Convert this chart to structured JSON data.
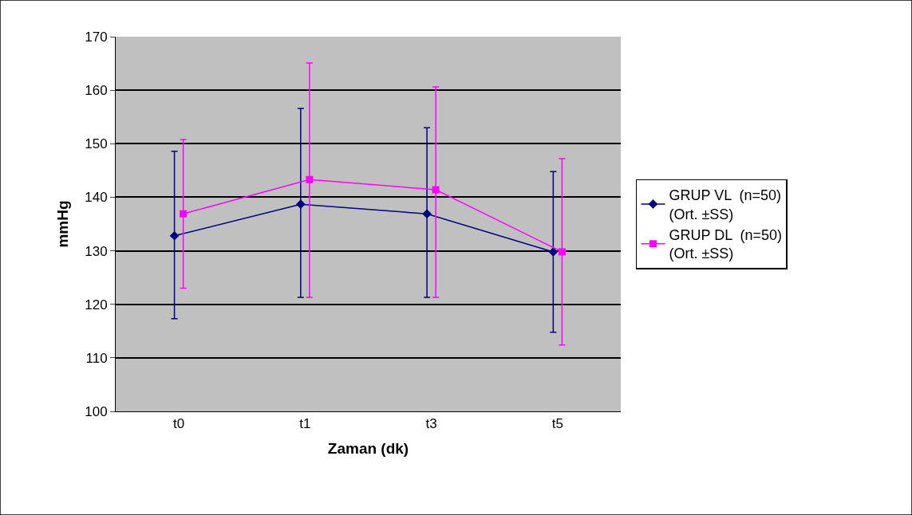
{
  "chart_data": {
    "type": "line",
    "xlabel": "Zaman (dk)",
    "ylabel": "mmHg",
    "categories": [
      "t0",
      "t1",
      "t3",
      "t5"
    ],
    "series": [
      {
        "name": "GRUP VL  (n=50) (Ort. ±SS)",
        "color": "#000080",
        "marker": "diamond",
        "values": [
          132.8,
          138.7,
          136.9,
          129.8
        ],
        "errors": [
          [
            117.3,
            148.6
          ],
          [
            121.3,
            156.6
          ],
          [
            121.3,
            153.0
          ],
          [
            114.8,
            144.8
          ]
        ]
      },
      {
        "name": "GRUP DL  (n=50) (Ort. ±SS)",
        "color": "#ff00ff",
        "marker": "square",
        "values": [
          136.9,
          143.3,
          141.4,
          129.8
        ],
        "errors": [
          [
            123.0,
            150.8
          ],
          [
            121.3,
            165.1
          ],
          [
            121.3,
            160.6
          ],
          [
            112.4,
            147.2
          ]
        ]
      }
    ],
    "ylim": [
      100,
      170
    ],
    "yticks": [
      100,
      110,
      120,
      130,
      140,
      150,
      160,
      170
    ],
    "grid": "y",
    "legend": "right",
    "line_style": "solid"
  }
}
